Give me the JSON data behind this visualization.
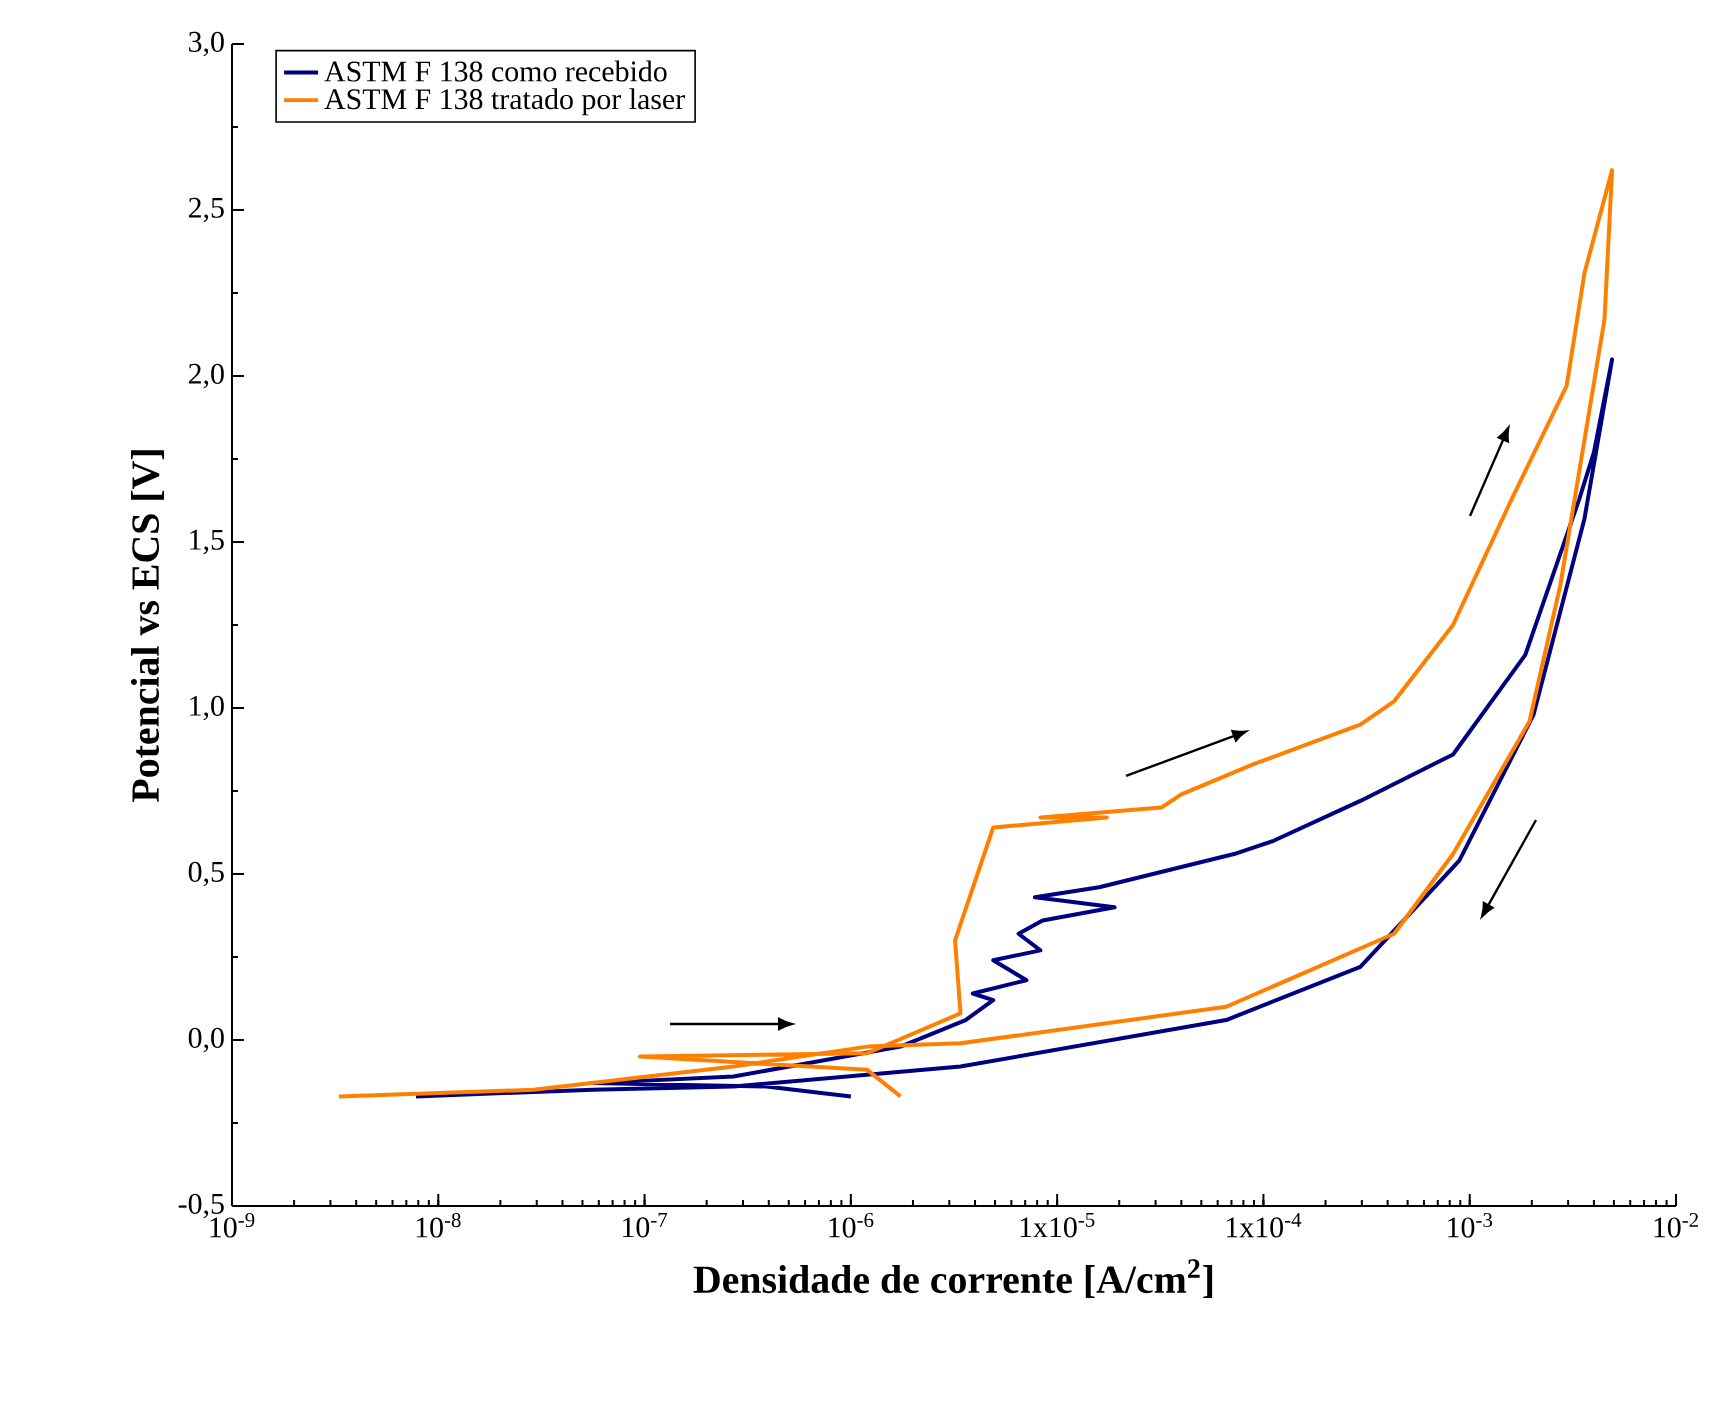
{
  "chart_data": {
    "type": "line",
    "log": "x",
    "legend": "top left",
    "xlabel": "Densidade de corrente [A/cm$^{2}$]",
    "ylabel": "Potencial vs ECS [V]",
    "xlim": [
      1e-09,
      0.01
    ],
    "ylim": [
      -0.5,
      3.0
    ],
    "xticks": [
      {
        "value": 1e-09,
        "label": "10$^{-9}$"
      },
      {
        "value": 1e-08,
        "label": "10$^{-8}$"
      },
      {
        "value": 1e-07,
        "label": "10$^{-7}$"
      },
      {
        "value": 1e-06,
        "label": "10$^{-6}$"
      },
      {
        "value": 1e-05,
        "label": "1x10$^{-5}$"
      },
      {
        "value": 0.0001,
        "label": "1x10$^{-4}$"
      },
      {
        "value": 0.001,
        "label": "10$^{-3}$"
      },
      {
        "value": 0.01,
        "label": "10$^{-2}$"
      }
    ],
    "yticks": [
      {
        "value": -0.5,
        "label": "-0,5"
      },
      {
        "value": 0.0,
        "label": "0,0"
      },
      {
        "value": 0.5,
        "label": "0,5"
      },
      {
        "value": 1.0,
        "label": "1,0"
      },
      {
        "value": 1.5,
        "label": "1,5"
      },
      {
        "value": 2.0,
        "label": "2,0"
      },
      {
        "value": 2.5,
        "label": "2,5"
      },
      {
        "value": 3.0,
        "label": "3,0"
      }
    ],
    "series": [
      {
        "name": "ASTM F 138 como recebido",
        "color": "#000080",
        "x": [
          1e-06,
          3.9e-07,
          5.6e-08,
          2.7e-07,
          1.74e-06,
          3.6e-06,
          4.9e-06,
          3.9e-06,
          7.1e-06,
          4.9e-06,
          8.3e-06,
          6.5e-06,
          8.5e-06,
          1.9e-05,
          7.8e-06,
          1.6e-05,
          7.2e-05,
          0.000112,
          0.000295,
          0.00083,
          0.00186,
          0.0034,
          0.004,
          0.0049,
          0.0036,
          0.00204,
          0.00089,
          0.000295,
          6.6e-05,
          3.4e-06,
          2.7e-07,
          5.6e-08,
          7.8e-09
        ],
        "values": [
          -0.17,
          -0.14,
          -0.13,
          -0.11,
          -0.02,
          0.06,
          0.12,
          0.14,
          0.18,
          0.24,
          0.27,
          0.32,
          0.36,
          0.4,
          0.43,
          0.46,
          0.56,
          0.6,
          0.72,
          0.86,
          1.16,
          1.63,
          1.77,
          2.05,
          1.57,
          0.98,
          0.54,
          0.22,
          0.06,
          -0.08,
          -0.14,
          -0.15,
          -0.17
        ]
      },
      {
        "name": "ASTM F 138 tratado por laser",
        "color": "#ff8000",
        "x": [
          1.74e-06,
          1.2e-06,
          9.5e-08,
          1.2e-06,
          3.4e-06,
          3.2e-06,
          4.9e-06,
          1.74e-05,
          8.3e-06,
          3.2e-05,
          4e-05,
          8.9e-05,
          0.000295,
          0.00043,
          0.00083,
          0.0016,
          0.00295,
          0.0036,
          0.0049,
          0.0045,
          0.00275,
          0.00195,
          0.00083,
          0.00043,
          6.6e-05,
          3.4e-06,
          1.2e-06,
          2.7e-07,
          2.9e-08,
          3.3e-09
        ],
        "values": [
          -0.17,
          -0.09,
          -0.05,
          -0.04,
          0.08,
          0.3,
          0.64,
          0.67,
          0.67,
          0.7,
          0.74,
          0.83,
          0.95,
          1.02,
          1.25,
          1.63,
          1.97,
          2.31,
          2.62,
          2.17,
          1.37,
          0.96,
          0.56,
          0.32,
          0.1,
          -0.01,
          -0.02,
          -0.08,
          -0.15,
          -0.17
        ]
      }
    ]
  }
}
